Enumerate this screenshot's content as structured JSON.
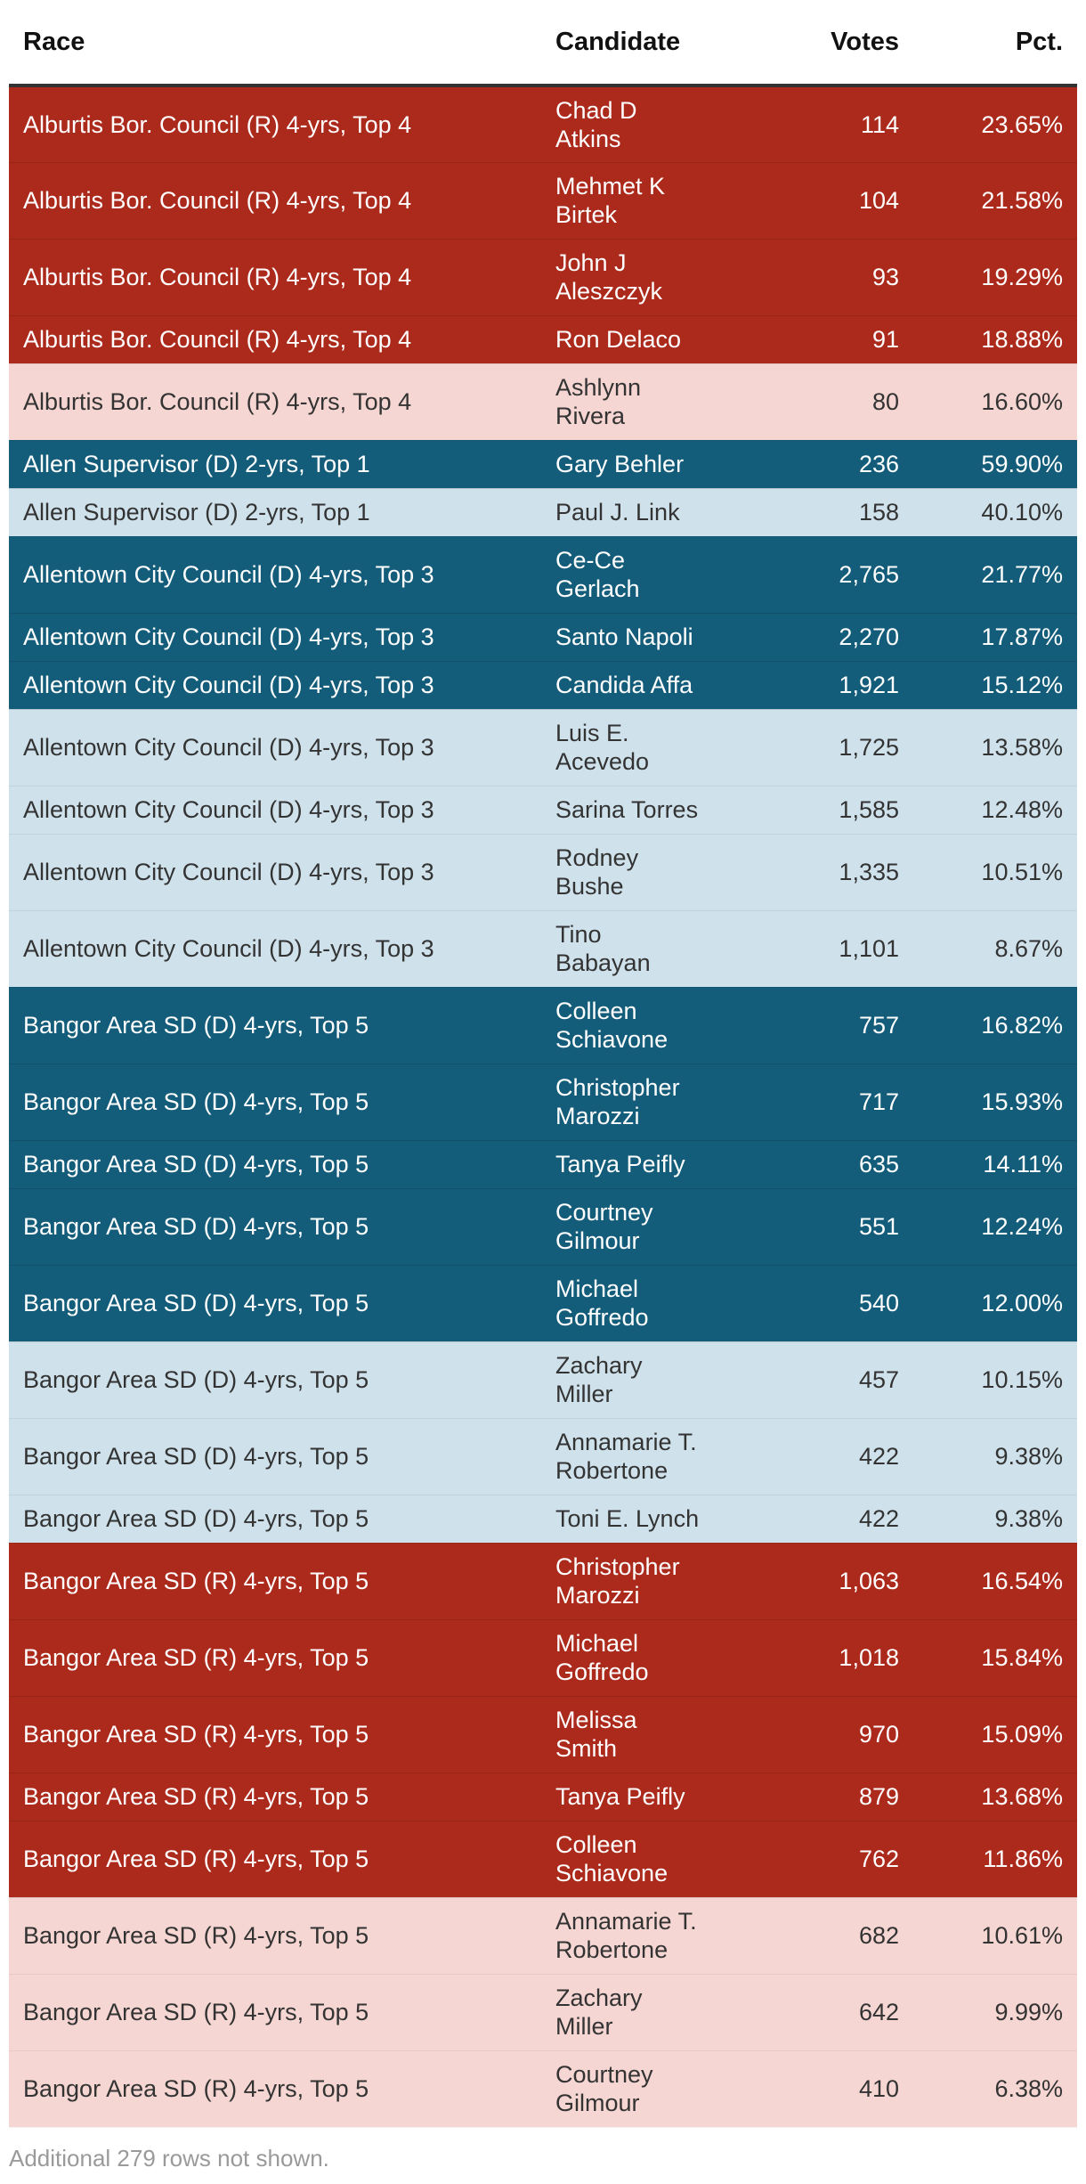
{
  "table": {
    "headers": {
      "race": "Race",
      "candidate": "Candidate",
      "votes": "Votes",
      "pct": "Pct."
    },
    "colors": {
      "republican_winner": "#ab2a1b",
      "republican_other": "#f6d6d2",
      "democrat_winner": "#145d7a",
      "democrat_other": "#cfe2ec"
    },
    "rows": [
      {
        "race": "Alburtis Bor. Council (R) 4-yrs, Top 4",
        "candidate": [
          "Chad D",
          "Atkins"
        ],
        "votes": "114",
        "pct": "23.65%",
        "style": "rep-win"
      },
      {
        "race": "Alburtis Bor. Council (R) 4-yrs, Top 4",
        "candidate": [
          "Mehmet K",
          "Birtek"
        ],
        "votes": "104",
        "pct": "21.58%",
        "style": "rep-win"
      },
      {
        "race": "Alburtis Bor. Council (R) 4-yrs, Top 4",
        "candidate": [
          "John J",
          "Aleszczyk"
        ],
        "votes": "93",
        "pct": "19.29%",
        "style": "rep-win"
      },
      {
        "race": "Alburtis Bor. Council (R) 4-yrs, Top 4",
        "candidate": [
          "Ron Delaco"
        ],
        "votes": "91",
        "pct": "18.88%",
        "style": "rep-win"
      },
      {
        "race": "Alburtis Bor. Council (R) 4-yrs, Top 4",
        "candidate": [
          "Ashlynn",
          "Rivera"
        ],
        "votes": "80",
        "pct": "16.60%",
        "style": "rep-lose"
      },
      {
        "race": "Allen Supervisor (D) 2-yrs, Top 1",
        "candidate": [
          "Gary Behler"
        ],
        "votes": "236",
        "pct": "59.90%",
        "style": "dem-win"
      },
      {
        "race": "Allen Supervisor (D) 2-yrs, Top 1",
        "candidate": [
          "Paul J. Link"
        ],
        "votes": "158",
        "pct": "40.10%",
        "style": "dem-lose"
      },
      {
        "race": "Allentown City Council (D) 4-yrs, Top 3",
        "candidate": [
          "Ce-Ce",
          "Gerlach"
        ],
        "votes": "2,765",
        "pct": "21.77%",
        "style": "dem-win"
      },
      {
        "race": "Allentown City Council (D) 4-yrs, Top 3",
        "candidate": [
          "Santo Napoli"
        ],
        "votes": "2,270",
        "pct": "17.87%",
        "style": "dem-win"
      },
      {
        "race": "Allentown City Council (D) 4-yrs, Top 3",
        "candidate": [
          "Candida Affa"
        ],
        "votes": "1,921",
        "pct": "15.12%",
        "style": "dem-win"
      },
      {
        "race": "Allentown City Council (D) 4-yrs, Top 3",
        "candidate": [
          "Luis E.",
          "Acevedo"
        ],
        "votes": "1,725",
        "pct": "13.58%",
        "style": "dem-lose"
      },
      {
        "race": "Allentown City Council (D) 4-yrs, Top 3",
        "candidate": [
          "Sarina Torres"
        ],
        "votes": "1,585",
        "pct": "12.48%",
        "style": "dem-lose"
      },
      {
        "race": "Allentown City Council (D) 4-yrs, Top 3",
        "candidate": [
          "Rodney",
          "Bushe"
        ],
        "votes": "1,335",
        "pct": "10.51%",
        "style": "dem-lose"
      },
      {
        "race": "Allentown City Council (D) 4-yrs, Top 3",
        "candidate": [
          "Tino",
          "Babayan"
        ],
        "votes": "1,101",
        "pct": "8.67%",
        "style": "dem-lose"
      },
      {
        "race": "Bangor Area SD (D) 4-yrs, Top 5",
        "candidate": [
          "Colleen",
          "Schiavone"
        ],
        "votes": "757",
        "pct": "16.82%",
        "style": "dem-win"
      },
      {
        "race": "Bangor Area SD (D) 4-yrs, Top 5",
        "candidate": [
          "Christopher",
          "Marozzi"
        ],
        "votes": "717",
        "pct": "15.93%",
        "style": "dem-win"
      },
      {
        "race": "Bangor Area SD (D) 4-yrs, Top 5",
        "candidate": [
          "Tanya Peifly"
        ],
        "votes": "635",
        "pct": "14.11%",
        "style": "dem-win"
      },
      {
        "race": "Bangor Area SD (D) 4-yrs, Top 5",
        "candidate": [
          "Courtney",
          "Gilmour"
        ],
        "votes": "551",
        "pct": "12.24%",
        "style": "dem-win"
      },
      {
        "race": "Bangor Area SD (D) 4-yrs, Top 5",
        "candidate": [
          "Michael",
          "Goffredo"
        ],
        "votes": "540",
        "pct": "12.00%",
        "style": "dem-win"
      },
      {
        "race": "Bangor Area SD (D) 4-yrs, Top 5",
        "candidate": [
          "Zachary",
          "Miller"
        ],
        "votes": "457",
        "pct": "10.15%",
        "style": "dem-lose"
      },
      {
        "race": "Bangor Area SD (D) 4-yrs, Top 5",
        "candidate": [
          "Annamarie T.",
          "Robertone"
        ],
        "votes": "422",
        "pct": "9.38%",
        "style": "dem-lose"
      },
      {
        "race": "Bangor Area SD (D) 4-yrs, Top 5",
        "candidate": [
          "Toni E. Lynch"
        ],
        "votes": "422",
        "pct": "9.38%",
        "style": "dem-lose"
      },
      {
        "race": "Bangor Area SD (R) 4-yrs, Top 5",
        "candidate": [
          "Christopher",
          "Marozzi"
        ],
        "votes": "1,063",
        "pct": "16.54%",
        "style": "rep-win"
      },
      {
        "race": "Bangor Area SD (R) 4-yrs, Top 5",
        "candidate": [
          "Michael",
          "Goffredo"
        ],
        "votes": "1,018",
        "pct": "15.84%",
        "style": "rep-win"
      },
      {
        "race": "Bangor Area SD (R) 4-yrs, Top 5",
        "candidate": [
          "Melissa",
          "Smith"
        ],
        "votes": "970",
        "pct": "15.09%",
        "style": "rep-win"
      },
      {
        "race": "Bangor Area SD (R) 4-yrs, Top 5",
        "candidate": [
          "Tanya Peifly"
        ],
        "votes": "879",
        "pct": "13.68%",
        "style": "rep-win"
      },
      {
        "race": "Bangor Area SD (R) 4-yrs, Top 5",
        "candidate": [
          "Colleen",
          "Schiavone"
        ],
        "votes": "762",
        "pct": "11.86%",
        "style": "rep-win"
      },
      {
        "race": "Bangor Area SD (R) 4-yrs, Top 5",
        "candidate": [
          "Annamarie T.",
          "Robertone"
        ],
        "votes": "682",
        "pct": "10.61%",
        "style": "rep-lose"
      },
      {
        "race": "Bangor Area SD (R) 4-yrs, Top 5",
        "candidate": [
          "Zachary",
          "Miller"
        ],
        "votes": "642",
        "pct": "9.99%",
        "style": "rep-lose"
      },
      {
        "race": "Bangor Area SD (R) 4-yrs, Top 5",
        "candidate": [
          "Courtney",
          "Gilmour"
        ],
        "votes": "410",
        "pct": "6.38%",
        "style": "rep-lose"
      }
    ]
  },
  "footnote": "Additional 279 rows not shown."
}
